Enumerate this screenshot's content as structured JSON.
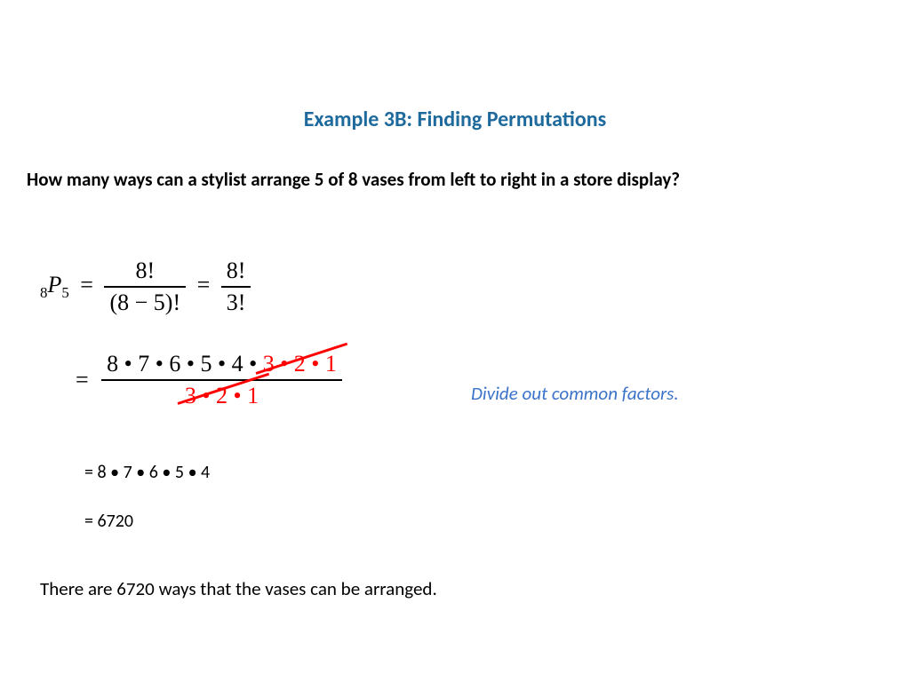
{
  "title": {
    "text": "Example 3B: Finding Permutations",
    "color": "#1e6a9c",
    "fontsize": 24
  },
  "question": {
    "text": "How many ways can a stylist arrange 5 of 8 vases from left to right in a store display?",
    "fontsize": 21,
    "color": "#000000"
  },
  "formula1": {
    "notation_n": "8",
    "notation_P": "P",
    "notation_r": "5",
    "eq": "=",
    "frac1_num": "8!",
    "frac1_den": "(8 − 5)!",
    "frac2_num": "8!",
    "frac2_den": "3!",
    "fontsize": 26,
    "color": "#000000"
  },
  "formula2": {
    "eq": "=",
    "num_black": "8 • 7 • 6 • 5 • 4 • ",
    "num_red": "3 • 2 • 1",
    "den_red": "3 • 2 • 1",
    "fontsize": 26,
    "black": "#000000",
    "red": "#ff0000",
    "strike_color": "#ff0000"
  },
  "hint": {
    "text": "Divide out common factors.",
    "color": "#3b73c8",
    "fontsize": 21
  },
  "step1": {
    "text": "= 8 • 7 • 6 • 5 • 4",
    "fontsize": 20,
    "color": "#000000"
  },
  "step2": {
    "text": "= 6720",
    "fontsize": 20,
    "color": "#000000"
  },
  "conclusion": {
    "text": "There are 6720 ways that the vases can be arranged.",
    "fontsize": 21,
    "color": "#000000"
  }
}
